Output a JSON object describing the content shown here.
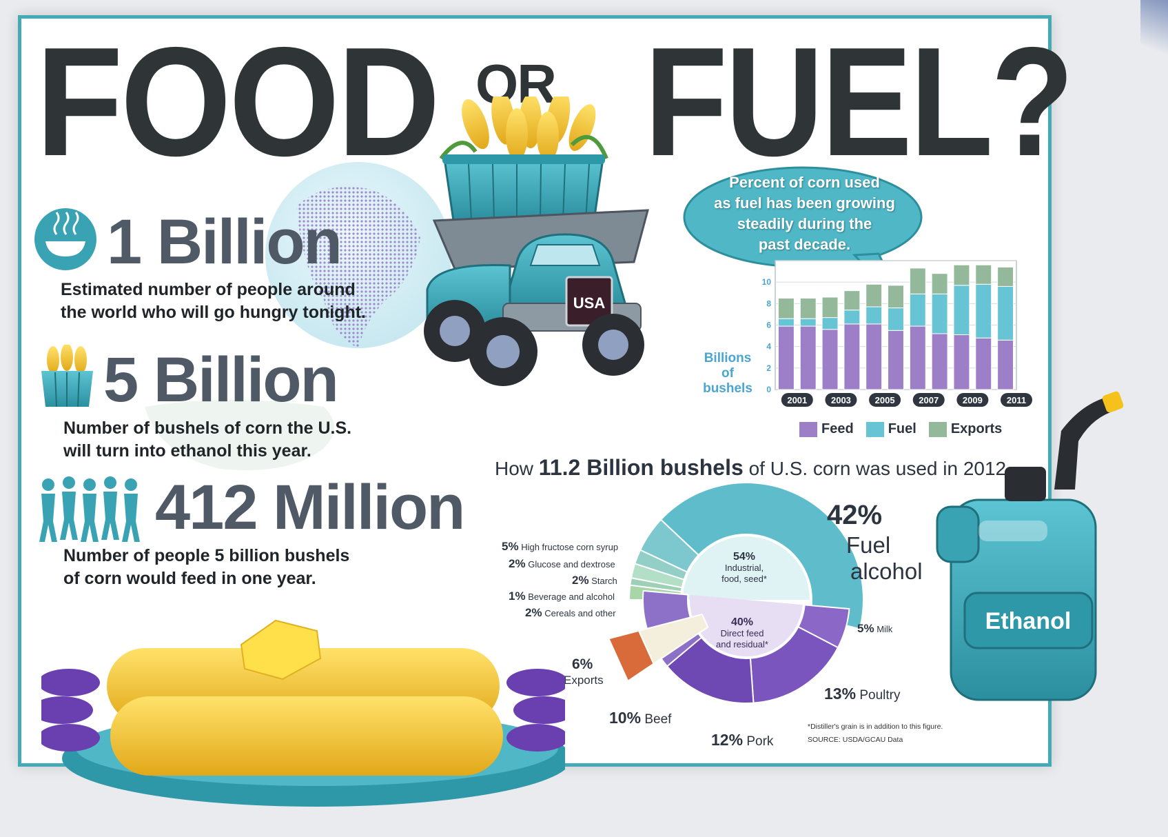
{
  "title": {
    "food": "FOOD",
    "or": "OR",
    "fuel": "FUEL?"
  },
  "stats": [
    {
      "value": "1 Billion",
      "description_line1": "Estimated number of people around",
      "description_line2": "the world who will go hungry tonight."
    },
    {
      "value": "5 Billion",
      "description_line1": "Number of bushels of corn the U.S.",
      "description_line2": "will turn into ethanol this year."
    },
    {
      "value": "412 Million",
      "description_line1": "Number of people 5 billion bushels",
      "description_line2": "of corn would feed in one year."
    }
  ],
  "truck_label": "USA",
  "bubble_text": [
    "Percent of corn used",
    "as fuel has been growing",
    "steadily during the",
    "past decade."
  ],
  "can_label": "Ethanol",
  "colors": {
    "feed": "#9c7fc6",
    "fuel": "#66c4d4",
    "exports": "#93b89a",
    "frame": "#43aab6",
    "teal": "#3aa3b3"
  },
  "chart_data": [
    {
      "type": "bar",
      "stacked": true,
      "categories": [
        "2001",
        "2002",
        "2003",
        "2004",
        "2005",
        "2006",
        "2007",
        "2008",
        "2009",
        "2010",
        "2011"
      ],
      "x_tick_labels": [
        "2001",
        "2003",
        "2005",
        "2007",
        "2009",
        "2011"
      ],
      "ylabel": [
        "Billions",
        "of",
        "bushels"
      ],
      "yticks": [
        0,
        2,
        4,
        6,
        8,
        10,
        12
      ],
      "ytick_labels": [
        "0",
        "2",
        "4",
        "6",
        "8",
        "10",
        ""
      ],
      "ylim": [
        0,
        12
      ],
      "grid": true,
      "legend_placement": "bottom",
      "series": [
        {
          "name": "Feed",
          "values": [
            5.9,
            5.9,
            5.6,
            6.1,
            6.1,
            5.5,
            5.9,
            5.2,
            5.1,
            4.8,
            4.6
          ]
        },
        {
          "name": "Fuel",
          "values": [
            0.7,
            0.7,
            1.1,
            1.3,
            1.6,
            2.1,
            3.0,
            3.7,
            4.6,
            5.0,
            5.0
          ]
        },
        {
          "name": "Exports",
          "values": [
            1.9,
            1.9,
            1.9,
            1.8,
            2.1,
            2.1,
            2.4,
            1.9,
            1.9,
            1.8,
            1.8
          ]
        }
      ]
    },
    {
      "type": "pie",
      "title_prefix": "How",
      "title_bold": "11.2 Billion bushels",
      "title_suffix": "of U.S. corn was used in 2012",
      "slices": [
        {
          "label": "Fuel alcohol",
          "value": 42
        },
        {
          "label": "High fructose corn syrup",
          "value": 5
        },
        {
          "label": "Glucose and dextrose",
          "value": 2
        },
        {
          "label": "Starch",
          "value": 2
        },
        {
          "label": "Beverage and alcohol",
          "value": 1
        },
        {
          "label": "Cereals and other",
          "value": 2
        },
        {
          "label": "Exports",
          "value": 6
        },
        {
          "label": "Beef",
          "value": 10
        },
        {
          "label": "Pork",
          "value": 12
        },
        {
          "label": "Poultry",
          "value": 13
        },
        {
          "label": "Milk",
          "value": 5
        }
      ],
      "groups": [
        {
          "pct": "54%",
          "line1": "Industrial,",
          "line2": "food, seed*"
        },
        {
          "pct": "40%",
          "line1": "Direct feed",
          "line2": "and residual*"
        }
      ],
      "labels": {
        "fuel_pct": "42%",
        "fuel_l1": "Fuel",
        "fuel_l2": "alcohol",
        "hfcs_pct": "5%",
        "hfcs": "High fructose corn syrup",
        "glucose_pct": "2%",
        "glucose": "Glucose and dextrose",
        "starch_pct": "2%",
        "starch": "Starch",
        "bev_pct": "1%",
        "bev": "Beverage and alcohol",
        "cereal_pct": "2%",
        "cereal": "Cereals and other",
        "exports_pct": "6%",
        "exports": "Exports",
        "milk_pct": "5%",
        "milk": "Milk",
        "poultry_pct": "13%",
        "poultry": "Poultry",
        "beef_pct": "10%",
        "beef": "Beef",
        "pork_pct": "12%",
        "pork": "Pork"
      },
      "footnote": "*Distiller's grain is in addition to this figure.",
      "source": "SOURCE: USDA/GCAU Data"
    }
  ]
}
